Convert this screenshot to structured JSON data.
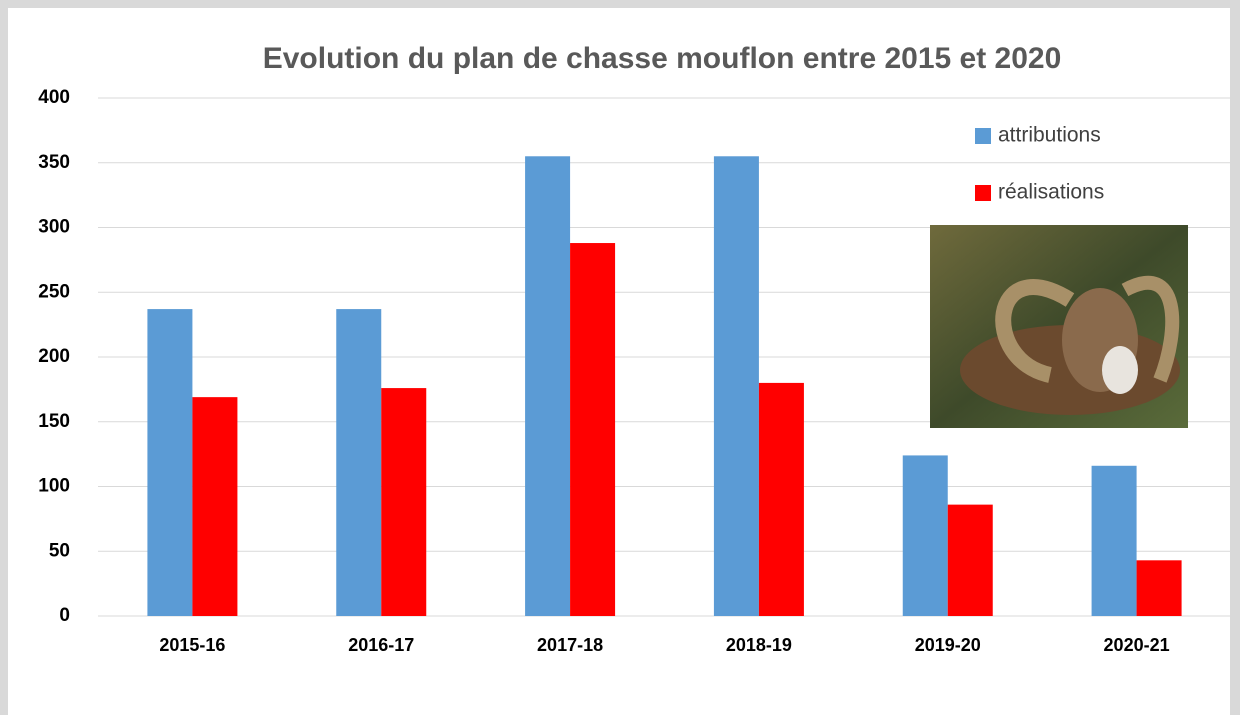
{
  "chart_data": {
    "type": "bar",
    "title": "Evolution du plan de chasse mouflon entre 2015 et 2020",
    "categories": [
      "2015-16",
      "2016-17",
      "2017-18",
      "2018-19",
      "2019-20",
      "2020-21"
    ],
    "series": [
      {
        "name": "attributions",
        "color": "#5b9bd5",
        "values": [
          237,
          237,
          355,
          355,
          124,
          116
        ]
      },
      {
        "name": "réalisations",
        "color": "#ff0000",
        "values": [
          169,
          176,
          288,
          180,
          86,
          43
        ]
      }
    ],
    "ylim": [
      0,
      400
    ],
    "yticks": [
      0,
      50,
      100,
      150,
      200,
      250,
      300,
      350,
      400
    ],
    "grid": true,
    "legend": "top-right"
  }
}
